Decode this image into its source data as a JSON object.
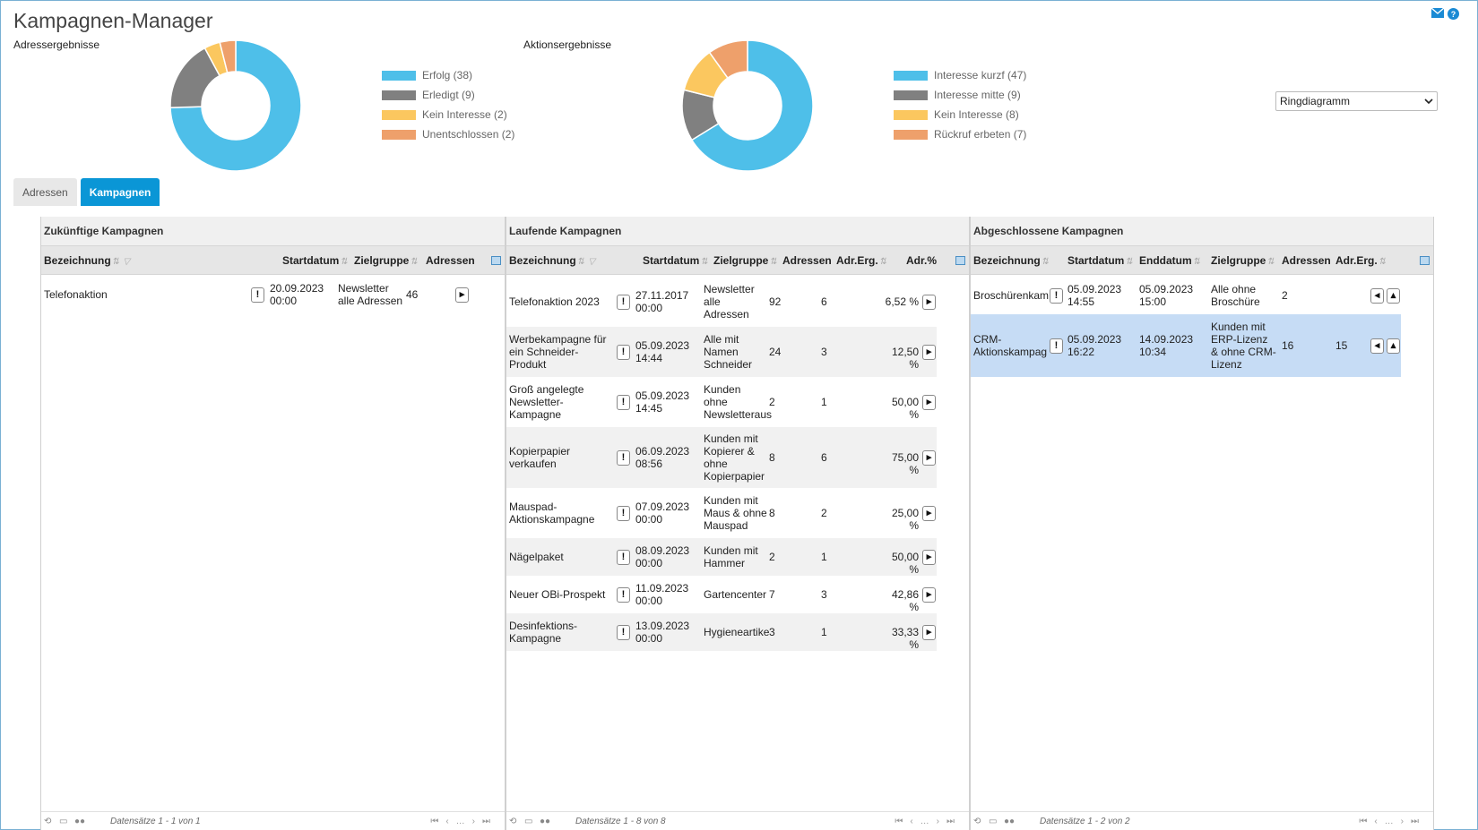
{
  "app": {
    "title": "Kampagnen-Manager"
  },
  "charts": {
    "left": {
      "title": "Adressergebnisse",
      "legend": [
        "Erfolg (38)",
        "Erledigt (9)",
        "Kein Interesse (2)",
        "Unentschlossen (2)"
      ]
    },
    "right": {
      "title": "Aktionsergebnisse",
      "legend": [
        "Interesse kurzf (47)",
        "Interesse mitte (9)",
        "Kein Interesse (8)",
        "Rückruf erbeten (7)"
      ]
    },
    "select_value": "Ringdiagramm"
  },
  "chart_data": [
    {
      "type": "pie",
      "categories": [
        "Erfolg",
        "Erledigt",
        "Kein Interesse",
        "Unentschlossen"
      ],
      "values": [
        38,
        9,
        2,
        2
      ],
      "colors": [
        "#4ebfe9",
        "#808080",
        "#fbc75f",
        "#eea06b"
      ],
      "title": "Adressergebnisse",
      "legend_position": "right"
    },
    {
      "type": "pie",
      "categories": [
        "Interesse kurzf",
        "Interesse mitte",
        "Kein Interesse",
        "Rückruf erbeten"
      ],
      "values": [
        47,
        9,
        8,
        7
      ],
      "colors": [
        "#4ebfe9",
        "#808080",
        "#fbc75f",
        "#eea06b"
      ],
      "title": "Aktionsergebnisse",
      "legend_position": "right"
    }
  ],
  "tabs": [
    "Adressen",
    "Kampagnen"
  ],
  "panels": {
    "future": {
      "title": "Zukünftige Kampagnen",
      "headers": [
        "Bezeichnung",
        "Startdatum",
        "Zielgruppe",
        "Adressen"
      ],
      "rows": [
        {
          "name": "Telefonaktion",
          "start": "20.09.2023\n00:00",
          "group": "Newsletter\nalle Adressen",
          "addr": "46"
        }
      ],
      "footer": "Datensätze 1 - 1 von 1"
    },
    "running": {
      "title": "Laufende Kampagnen",
      "headers": [
        "Bezeichnung",
        "Startdatum",
        "Zielgruppe",
        "Adressen",
        "Adr.Erg.",
        "Adr.%"
      ],
      "rows": [
        {
          "name": "Telefonaktion 2023",
          "start": "27.11.2017\n00:00",
          "group": "Newsletter\nalle\nAdressen",
          "addr": "92",
          "erg": "6",
          "pct": "6,52 %"
        },
        {
          "name": "Werbekampagne für\nein Schneider-\nProdukt",
          "start": "05.09.2023\n14:44",
          "group": "Alle mit\nNamen\nSchneider",
          "addr": "24",
          "erg": "3",
          "pct": "12,50 %"
        },
        {
          "name": "Groß angelegte\nNewsletter-\nKampagne",
          "start": "05.09.2023\n14:45",
          "group": "Kunden\nohne\nNewsletteraus",
          "addr": "2",
          "erg": "1",
          "pct": "50,00 %"
        },
        {
          "name": "Kopierpapier\nverkaufen",
          "start": "06.09.2023\n08:56",
          "group": "Kunden mit\nKopierer &\nohne\nKopierpapier",
          "addr": "8",
          "erg": "6",
          "pct": "75,00 %"
        },
        {
          "name": "Mauspad-\nAktionskampagne",
          "start": "07.09.2023\n00:00",
          "group": "Kunden mit\nMaus & ohne\nMauspad",
          "addr": "8",
          "erg": "2",
          "pct": "25,00 %"
        },
        {
          "name": "Nägelpaket",
          "start": "08.09.2023\n00:00",
          "group": "Kunden mit\nHammer",
          "addr": "2",
          "erg": "1",
          "pct": "50,00 %"
        },
        {
          "name": "Neuer OBi-Prospekt",
          "start": "11.09.2023\n00:00",
          "group": "Gartencenter",
          "addr": "7",
          "erg": "3",
          "pct": "42,86 %"
        },
        {
          "name": "Desinfektions-\nKampagne",
          "start": "13.09.2023\n00:00",
          "group": "Hygieneartike",
          "addr": "3",
          "erg": "1",
          "pct": "33,33 %"
        }
      ],
      "footer": "Datensätze 1 - 8 von 8"
    },
    "done": {
      "title": "Abgeschlossene Kampagnen",
      "headers": [
        "Bezeichnung",
        "Startdatum",
        "Enddatum",
        "Zielgruppe",
        "Adressen",
        "Adr.Erg."
      ],
      "rows": [
        {
          "name": "Broschürenkam",
          "start": "05.09.2023\n14:55",
          "end": "05.09.2023\n15:00",
          "group": "Alle ohne\nBroschüre",
          "addr": "2",
          "erg": ""
        },
        {
          "name": "CRM-\nAktionskampag",
          "start": "05.09.2023\n16:22",
          "end": "14.09.2023\n10:34",
          "group": "Kunden mit\nERP-Lizenz\n& ohne CRM-\nLizenz",
          "addr": "16",
          "erg": "15"
        }
      ],
      "footer": "Datensätze 1 - 2 von 2"
    }
  }
}
